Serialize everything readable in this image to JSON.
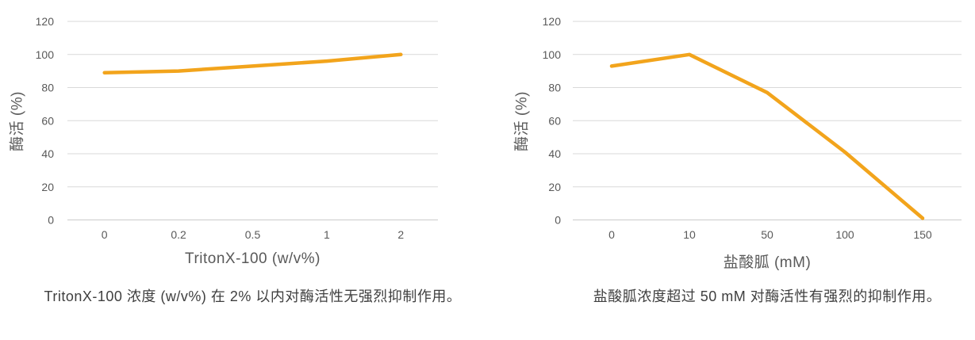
{
  "colors": {
    "line": "#F2A41C",
    "gridline": "#D9D9D9",
    "axis_line": "#CBCBCB",
    "axis_text": "#595959",
    "caption_text": "#3F3F3F",
    "background": "#FFFFFF"
  },
  "chart_data": [
    {
      "type": "line",
      "title": "",
      "categories": [
        "0",
        "0.2",
        "0.5",
        "1",
        "2"
      ],
      "values": [
        89,
        90,
        93,
        96,
        100
      ],
      "xlabel": "TritonX-100 (w/v%)",
      "ylabel": "酶活 (%)",
      "ylim": [
        0,
        120
      ],
      "yticks": [
        0,
        20,
        40,
        60,
        80,
        100,
        120
      ],
      "grid": "horizontal",
      "legend": "none",
      "caption": "TritonX-100 浓度 (w/v%) 在 2% 以内对酶活性无强烈抑制作用。"
    },
    {
      "type": "line",
      "title": "",
      "categories": [
        "0",
        "10",
        "50",
        "100",
        "150"
      ],
      "values": [
        93,
        100,
        77,
        41,
        1
      ],
      "xlabel": "盐酸胍 (mM)",
      "ylabel": "酶活 (%)",
      "ylim": [
        0,
        120
      ],
      "yticks": [
        0,
        20,
        40,
        60,
        80,
        100,
        120
      ],
      "grid": "horizontal",
      "legend": "none",
      "caption": "盐酸胍浓度超过 50 mM 对酶活性有强烈的抑制作用。"
    }
  ]
}
